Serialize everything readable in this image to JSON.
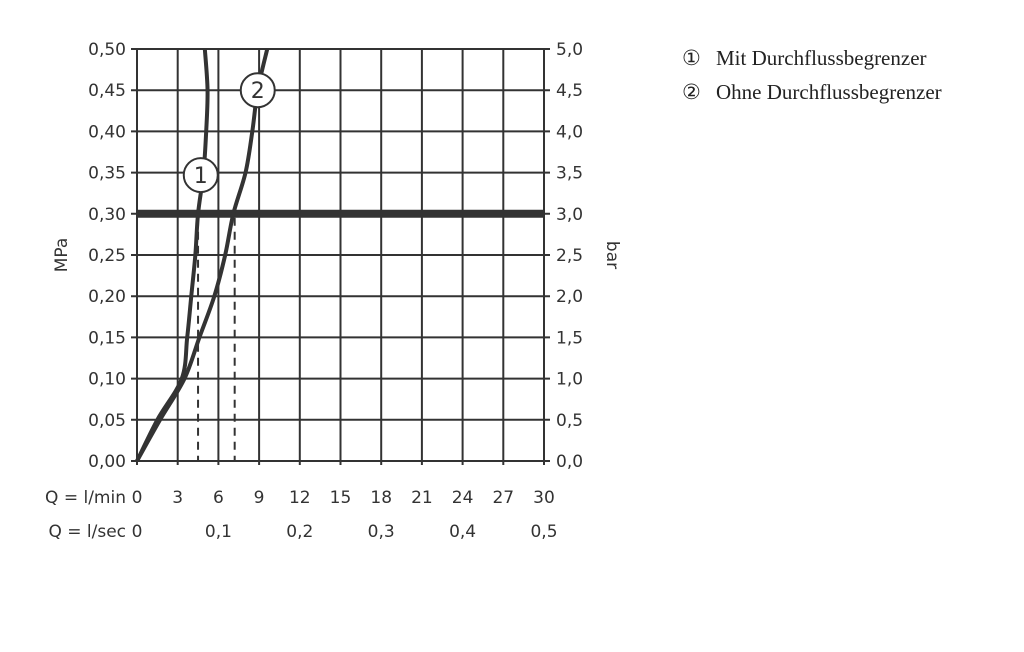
{
  "chart_data": {
    "type": "line",
    "xlabel": "Q = l/min",
    "x2label": "Q = l/sec",
    "ylabel": "MPa",
    "y2label": "bar",
    "xlim": [
      0,
      30
    ],
    "ylim": [
      0,
      0.5
    ],
    "grid": true,
    "x_ticks": [
      "0",
      "3",
      "6",
      "9",
      "12",
      "15",
      "18",
      "21",
      "24",
      "27",
      "30"
    ],
    "x2_ticks": [
      {
        "value": 0,
        "label": "0"
      },
      {
        "value": 6,
        "label": "0,1"
      },
      {
        "value": 12,
        "label": "0,2"
      },
      {
        "value": 18,
        "label": "0,3"
      },
      {
        "value": 24,
        "label": "0,4"
      },
      {
        "value": 30,
        "label": "0,5"
      }
    ],
    "y_ticks": [
      "0,00",
      "0,05",
      "0,10",
      "0,15",
      "0,20",
      "0,25",
      "0,30",
      "0,35",
      "0,40",
      "0,45",
      "0,50"
    ],
    "y2_ticks": [
      "0,0",
      "0,5",
      "1,0",
      "1,5",
      "2,0",
      "2,5",
      "3,0",
      "3,5",
      "4,0",
      "4,5",
      "5,0"
    ],
    "reference_line": {
      "y": 0.3
    },
    "series": [
      {
        "name": "Mit Durchflussbegrenzer",
        "marker": "1",
        "marker_at": [
          4.7,
          0.347
        ],
        "dashed_drop_x": 4.5,
        "x": [
          0,
          1.5,
          3.3,
          3.7,
          4.0,
          4.3,
          4.5,
          4.9,
          5.1,
          5.2,
          5.0
        ],
        "y": [
          0,
          0.05,
          0.1,
          0.15,
          0.2,
          0.25,
          0.3,
          0.35,
          0.4,
          0.45,
          0.5
        ]
      },
      {
        "name": "Ohne Durchflussbegrenzer",
        "marker": "2",
        "marker_at": [
          8.9,
          0.45
        ],
        "dashed_drop_x": 7.2,
        "x": [
          0,
          1.7,
          3.5,
          4.6,
          5.7,
          6.5,
          7.1,
          8.0,
          8.5,
          8.9,
          9.6
        ],
        "y": [
          0,
          0.05,
          0.1,
          0.15,
          0.2,
          0.25,
          0.3,
          0.35,
          0.4,
          0.45,
          0.5
        ]
      }
    ]
  },
  "legend": {
    "items": [
      {
        "num": "①",
        "text": "Mit Durchflussbegrenzer"
      },
      {
        "num": "②",
        "text": "Ohne Durchflussbegrenzer"
      }
    ]
  },
  "colors": {
    "line": "#333333",
    "grid": "#333333"
  }
}
